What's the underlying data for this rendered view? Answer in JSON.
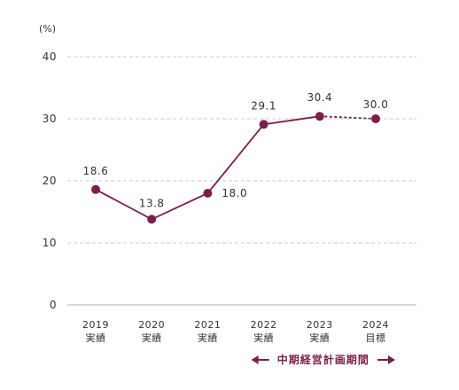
{
  "chart_data": {
    "type": "line",
    "unit_label": "(%)",
    "y_ticks": [
      "0",
      "10",
      "20",
      "30",
      "40"
    ],
    "ylim": [
      0,
      40
    ],
    "grid": true,
    "categories": [
      [
        "2019",
        "実績"
      ],
      [
        "2020",
        "実績"
      ],
      [
        "2021",
        "実績"
      ],
      [
        "2022",
        "実績"
      ],
      [
        "2023",
        "実績"
      ],
      [
        "2024",
        "目標"
      ]
    ],
    "series": [
      {
        "values": [
          18.6,
          13.8,
          18.0,
          29.1,
          30.4,
          30.0
        ],
        "labels": [
          "18.6",
          "13.8",
          "18.0",
          "29.1",
          "30.4",
          "30.0"
        ],
        "dashed_from_index": 4
      }
    ],
    "colors": {
      "line": "#7a1f4d",
      "marker": "#7a1f4d",
      "period_arrow": "#7a1f4d"
    },
    "period_annotation": {
      "text": "中期経営計画期間",
      "from_category": 3,
      "to_category": 5
    }
  }
}
